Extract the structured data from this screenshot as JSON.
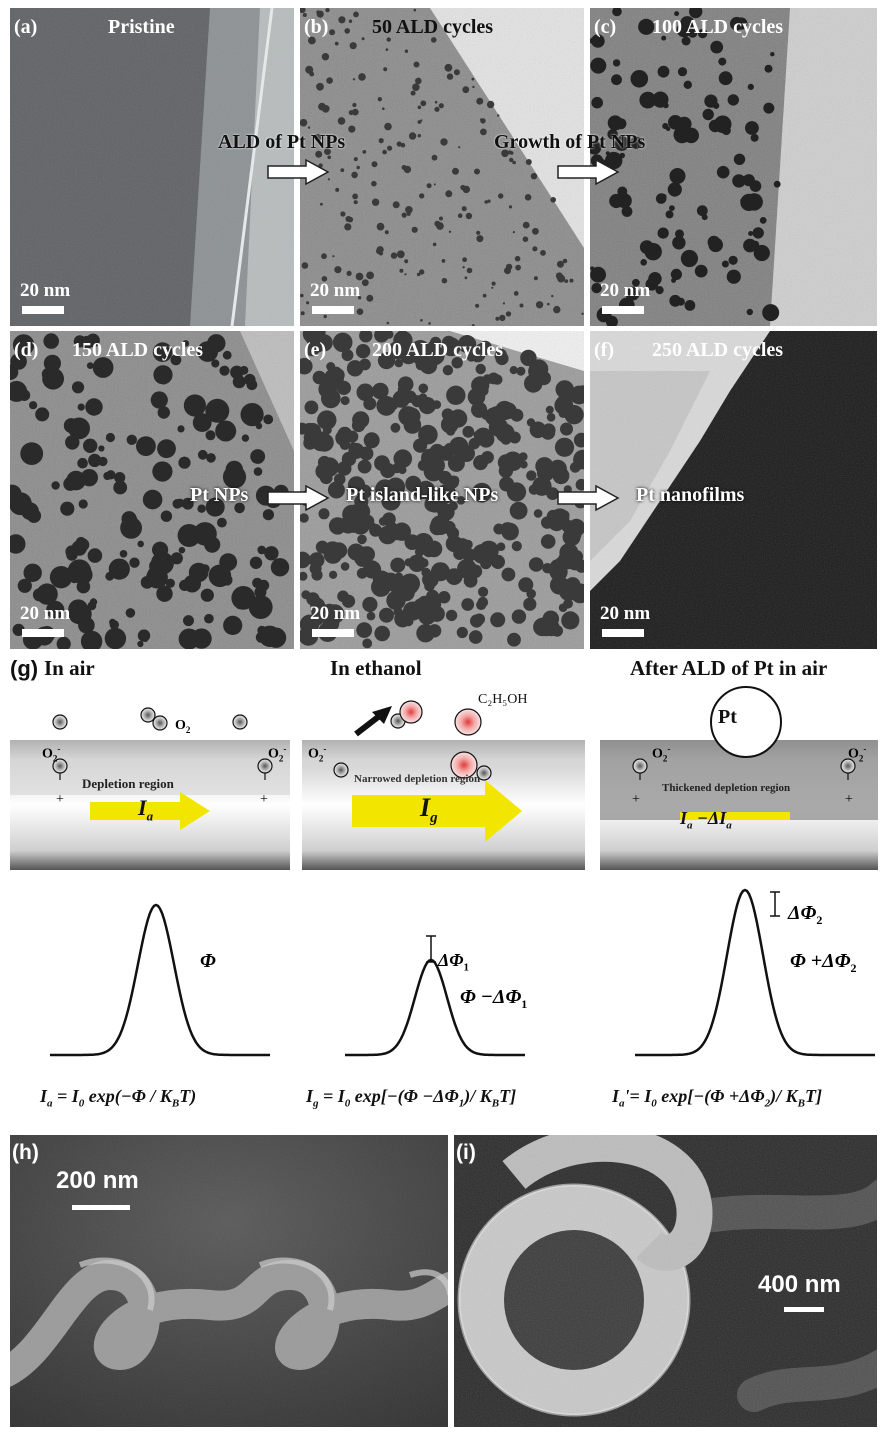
{
  "tem": {
    "a": {
      "label": "(a)",
      "title": "Pristine",
      "scale": "20 nm"
    },
    "b": {
      "label": "(b)",
      "title": "50 ALD cycles",
      "scale": "20 nm"
    },
    "c": {
      "label": "(c)",
      "title": "100 ALD cycles",
      "scale": "20 nm"
    },
    "d": {
      "label": "(d)",
      "title": "150 ALD cycles",
      "scale": "20 nm"
    },
    "e": {
      "label": "(e)",
      "title": "200 ALD cycles",
      "scale": "20 nm"
    },
    "f": {
      "label": "(f)",
      "title": "250 ALD cycles",
      "scale": "20 nm"
    }
  },
  "transitions": {
    "ab": "ALD of Pt NPs",
    "bc": "Growth of Pt NPs",
    "d": "Pt NPs",
    "e": "Pt island-like NPs",
    "f": "Pt nanofilms"
  },
  "g": {
    "label": "(g)",
    "headers": [
      "In air",
      "In ethanol",
      "After ALD of Pt in air"
    ],
    "o2": "O",
    "o2_sub": "2",
    "o2_minus_sup": "-",
    "c2h5oh": "C₂H₅OH",
    "pt": "Pt",
    "plus": "+",
    "depletion": "Depletion region",
    "narrowed": "Narrowed depletion region",
    "thickened": "Thickened depletion region",
    "i_a": "I",
    "i_a_sub": "a",
    "i_g": "I",
    "i_g_sub": "g",
    "i_a_minus": "I",
    "i_a_minus_rest": " −ΔI",
    "phi": "Φ",
    "dphi1": "ΔΦ",
    "dphi1_sub": "1",
    "phi_minus": "Φ −ΔΦ",
    "phi_minus_sub": "1",
    "dphi2": "ΔΦ",
    "dphi2_sub": "2",
    "phi_plus": "Φ +ΔΦ",
    "phi_plus_sub": "2",
    "eq1": "I<sub>a</sub> = I<sub>0</sub> exp(−Φ / K<sub>B</sub>T)",
    "eq2": "I<sub>g</sub> = I<sub>0</sub> exp[−(Φ  −ΔΦ<sub>1</sub>)/ K<sub>B</sub>T]",
    "eq3": "I<sub>a</sub>'= I<sub>0</sub> exp[−(Φ +ΔΦ<sub>2</sub>)/ K<sub>B</sub>T]"
  },
  "sem": {
    "h": {
      "label": "(h)",
      "scale": "200 nm"
    },
    "i": {
      "label": "(i)",
      "scale": "400 nm"
    }
  },
  "colors": {
    "arrow_yellow": "#f2e600",
    "tem_bg": "#6a6a6a",
    "sem_bg": "#3a3a3a"
  }
}
